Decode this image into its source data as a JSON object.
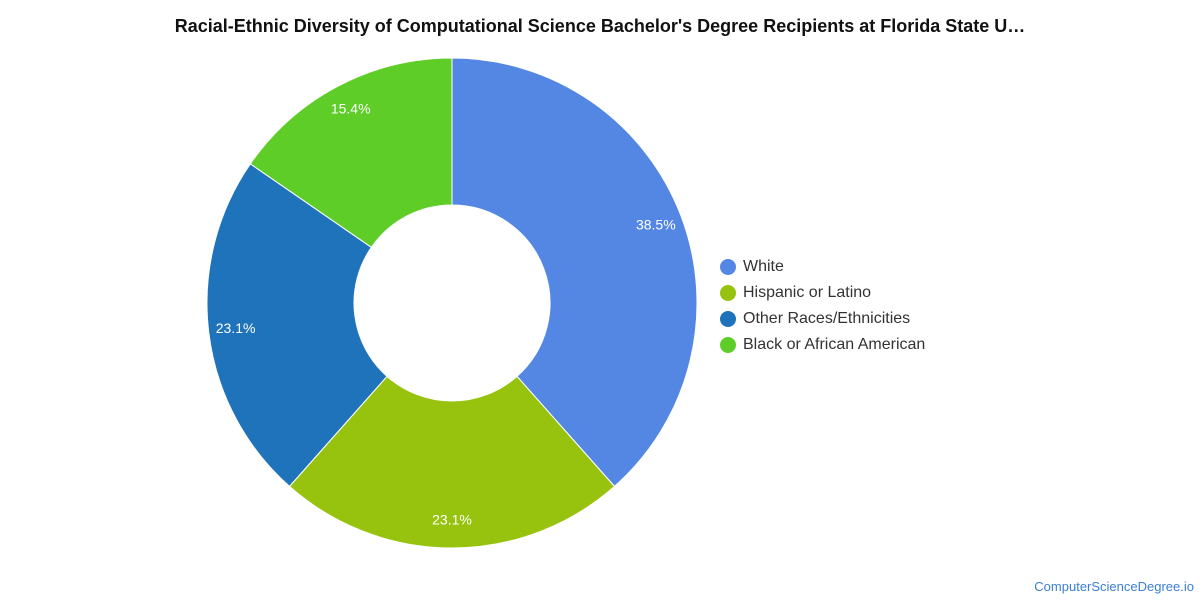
{
  "chart_data": {
    "type": "pie",
    "title": "Racial-Ethnic Diversity of Computational Science Bachelor's Degree Recipients at Florida State U…",
    "slices": [
      {
        "name": "White",
        "value": 38.5,
        "label": "38.5%",
        "color": "#5487e3"
      },
      {
        "name": "Hispanic or Latino",
        "value": 23.1,
        "label": "23.1%",
        "color": "#97c30f"
      },
      {
        "name": "Other Races/Ethnicities",
        "value": 23.1,
        "label": "23.1%",
        "color": "#1f73bb"
      },
      {
        "name": "Black or African American",
        "value": 15.4,
        "label": "15.4%",
        "color": "#5fcd28"
      }
    ],
    "legend": "right"
  },
  "footer": {
    "credit": "ComputerScienceDegree.io"
  }
}
